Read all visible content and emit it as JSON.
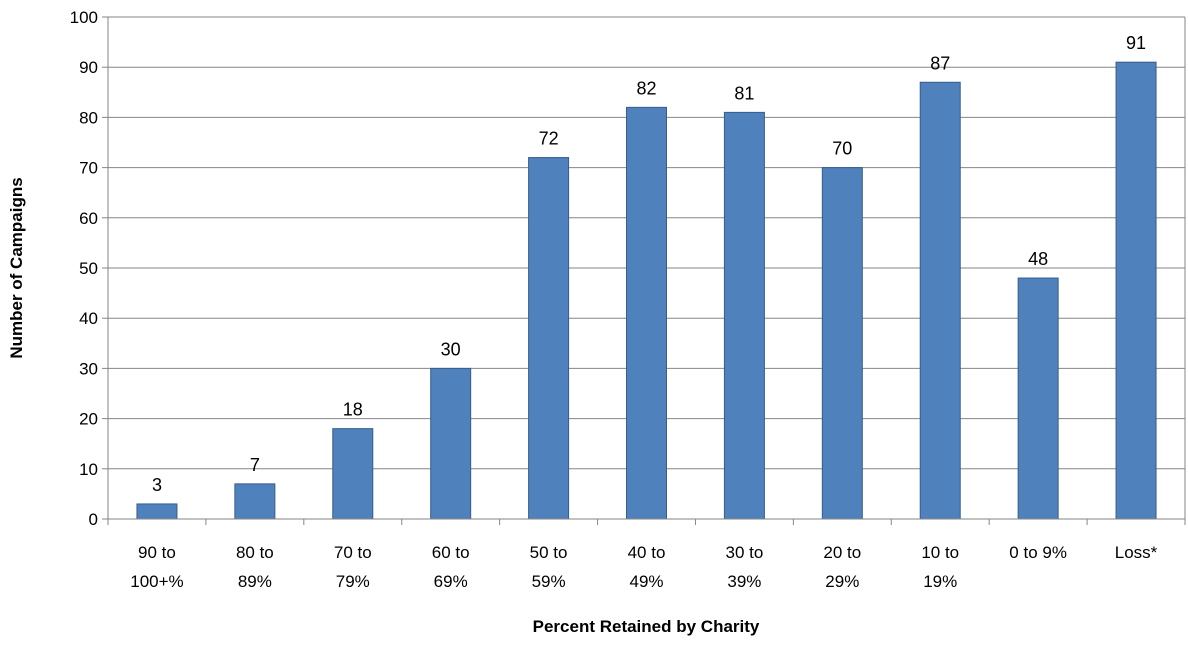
{
  "chart_data": {
    "type": "bar",
    "title": "",
    "xlabel": "Percent Retained by Charity",
    "ylabel": "Number of Campaigns",
    "categories": [
      [
        "90 to",
        "100+%"
      ],
      [
        "80 to",
        "89%"
      ],
      [
        "70 to",
        "79%"
      ],
      [
        "60 to",
        "69%"
      ],
      [
        "50 to",
        "59%"
      ],
      [
        "40 to",
        "49%"
      ],
      [
        "30 to",
        "39%"
      ],
      [
        "20 to",
        "29%"
      ],
      [
        "10 to",
        "19%"
      ],
      [
        "0 to 9%"
      ],
      [
        "Loss*"
      ]
    ],
    "values": [
      3,
      7,
      18,
      30,
      72,
      82,
      81,
      70,
      87,
      48,
      91
    ],
    "data_labels": [
      "3",
      "7",
      "18",
      "30",
      "72",
      "82",
      "81",
      "70",
      "87",
      "48",
      "91"
    ],
    "yticks": [
      "0",
      "10",
      "20",
      "30",
      "40",
      "50",
      "60",
      "70",
      "80",
      "90",
      "100"
    ],
    "ylim": [
      0,
      100
    ],
    "grid": true,
    "legend": "none",
    "colors": {
      "bar_fill": "#4f81bd",
      "bar_stroke": "#385d8a",
      "plot_background": "#ffffff",
      "gridline": "#868686",
      "axis": "#868686"
    }
  }
}
